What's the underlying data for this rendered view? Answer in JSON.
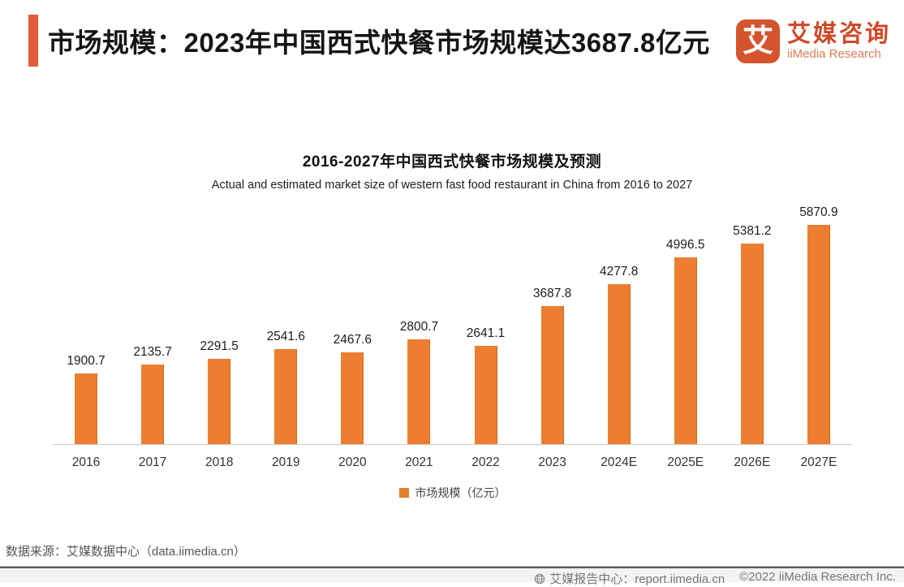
{
  "header": {
    "title": "市场规模：2023年中国西式快餐市场规模达3687.8亿元",
    "accent_color": "#E25B3B"
  },
  "logo": {
    "glyph": "艾",
    "name_cn": "艾媒咨询",
    "name_en": "iiMedia Research",
    "brand_color": "#D4542E"
  },
  "chart_data": {
    "type": "bar",
    "title": "2016-2027年中国西式快餐市场规模及预测",
    "subtitle": "Actual and estimated market size of western fast food restaurant in China from 2016 to 2027",
    "categories": [
      "2016",
      "2017",
      "2018",
      "2019",
      "2020",
      "2021",
      "2022",
      "2023",
      "2024E",
      "2025E",
      "2026E",
      "2027E"
    ],
    "values": [
      1900.7,
      2135.7,
      2291.5,
      2541.6,
      2467.6,
      2800.7,
      2641.1,
      3687.8,
      4277.8,
      4996.5,
      5381.2,
      5870.9
    ],
    "legend": "市场规模（亿元）",
    "bar_color": "#ED7D31",
    "xlabel": "",
    "ylabel": "市场规模（亿元）",
    "ylim": [
      0,
      6000
    ],
    "grid": false,
    "legend_position": "bottom",
    "value_labels": true
  },
  "footer": {
    "source": "数据来源：艾媒数据中心（data.iimedia.cn）",
    "report_center": "艾媒报告中心：report.iimedia.cn",
    "copyright": "©2022 iiMedia Research Inc."
  }
}
